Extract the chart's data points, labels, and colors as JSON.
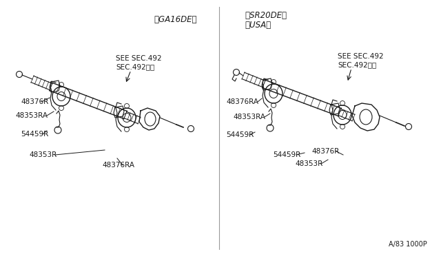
{
  "bg_color": "#ffffff",
  "line_color": "#1a1a1a",
  "text_color": "#1a1a1a",
  "fig_width": 6.4,
  "fig_height": 3.72,
  "dpi": 100,
  "left_header": "（GA16DE）",
  "right_header_line1": "（SR20DE）",
  "right_header_line2": "（USA）",
  "see_sec_line1": "SEE SEC.492",
  "see_sec_line2": "SEC.492参照",
  "footer_text": "A/83 1000P"
}
